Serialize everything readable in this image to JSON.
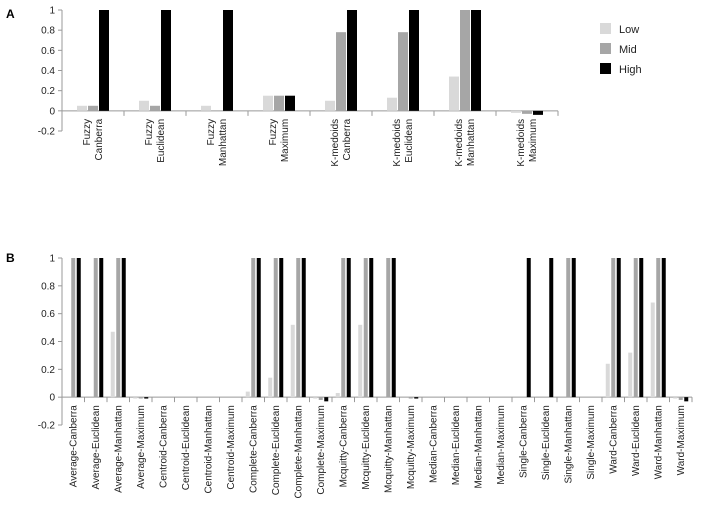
{
  "colors": {
    "Low": "#d9d9d9",
    "Mid": "#a6a6a6",
    "High": "#000000",
    "axis": "#999999",
    "text": "#222222"
  },
  "chart_data": [
    {
      "panel": "A",
      "type": "bar",
      "title": "",
      "xlabel": "",
      "ylabel": "",
      "ylim": [
        -0.2,
        1
      ],
      "yticks": [
        "1",
        "0.8",
        "0.6",
        "0.4",
        "0.2",
        "0",
        "-0.2"
      ],
      "ytick_values": [
        1,
        0.8,
        0.6,
        0.4,
        0.2,
        0,
        -0.2
      ],
      "grid": false,
      "legend": "right",
      "categories": [
        [
          "Fuzzy",
          "Canberra"
        ],
        [
          "Fuzzy",
          "Euclidean"
        ],
        [
          "Fuzzy",
          "Manhattan"
        ],
        [
          "Fuzzy",
          "Maximum"
        ],
        [
          "K-medoids",
          "Canberra"
        ],
        [
          "K-medoids",
          "Euclidean"
        ],
        [
          "K-medoids",
          "Manhattan"
        ],
        [
          "K-medoids",
          "Maximum"
        ]
      ],
      "series": [
        {
          "name": "Low",
          "values": [
            0.05,
            0.1,
            0.05,
            0.15,
            0.1,
            0.13,
            0.34,
            -0.02
          ]
        },
        {
          "name": "Mid",
          "values": [
            0.05,
            0.05,
            0.0,
            0.15,
            0.78,
            0.78,
            1.0,
            -0.03
          ]
        },
        {
          "name": "High",
          "values": [
            1.0,
            1.0,
            1.0,
            0.15,
            1.0,
            1.0,
            1.0,
            -0.04
          ]
        }
      ]
    },
    {
      "panel": "B",
      "type": "bar",
      "title": "",
      "xlabel": "",
      "ylabel": "",
      "ylim": [
        -0.2,
        1
      ],
      "yticks": [
        "1",
        "0.8",
        "0.6",
        "0.4",
        "0.2",
        "0",
        "-0.2"
      ],
      "ytick_values": [
        1,
        0.8,
        0.6,
        0.4,
        0.2,
        0,
        -0.2
      ],
      "grid": false,
      "legend": "none",
      "categories": [
        "Average-Canberra",
        "Average-Euclidean",
        "Average-Manhattan",
        "Average-Maximum",
        "Centroid-Canberra",
        "Centroid-Euclidean",
        "Centroid-Manhattan",
        "Centroid-Maximum",
        "Complete-Canberra",
        "Complete-Euclidean",
        "Complete-Manhattan",
        "Complete-Maximum",
        "Mcquitty-Canberra",
        "Mcquitty-Euclidean",
        "Mcquitty-Manhattan",
        "Mcquitty-Maximum",
        "Median-Canberra",
        "Median-Euclidean",
        "Median-Manhattan",
        "Median-Maximum",
        "Single-Canberra",
        "Single-Euclidean",
        "Single-Manhattan",
        "Single-Maximum",
        "Ward-Canberra",
        "Ward-Euclidean",
        "Ward-Manhattan",
        "Ward-Maximum"
      ],
      "series": [
        {
          "name": "Low",
          "values": [
            0,
            0,
            0.47,
            -0.01,
            0,
            0,
            0,
            0,
            0.04,
            0.14,
            0.52,
            -0.01,
            0.03,
            0.52,
            0,
            0,
            0,
            0,
            0,
            0,
            0,
            0,
            0,
            0,
            0.24,
            0.32,
            0.68,
            -0.01
          ]
        },
        {
          "name": "Mid",
          "values": [
            1,
            1,
            1,
            -0.01,
            0,
            0,
            0,
            0,
            1,
            1,
            1,
            -0.02,
            1,
            1,
            1,
            -0.01,
            0,
            0,
            0,
            0,
            0,
            0,
            1,
            0,
            1,
            1,
            1,
            -0.02
          ]
        },
        {
          "name": "High",
          "values": [
            1,
            1,
            1,
            -0.01,
            0,
            0,
            0,
            0,
            1,
            1,
            1,
            -0.03,
            1,
            1,
            1,
            -0.01,
            0,
            0,
            0,
            0,
            1,
            1,
            1,
            0,
            1,
            1,
            1,
            -0.03
          ]
        }
      ]
    }
  ]
}
